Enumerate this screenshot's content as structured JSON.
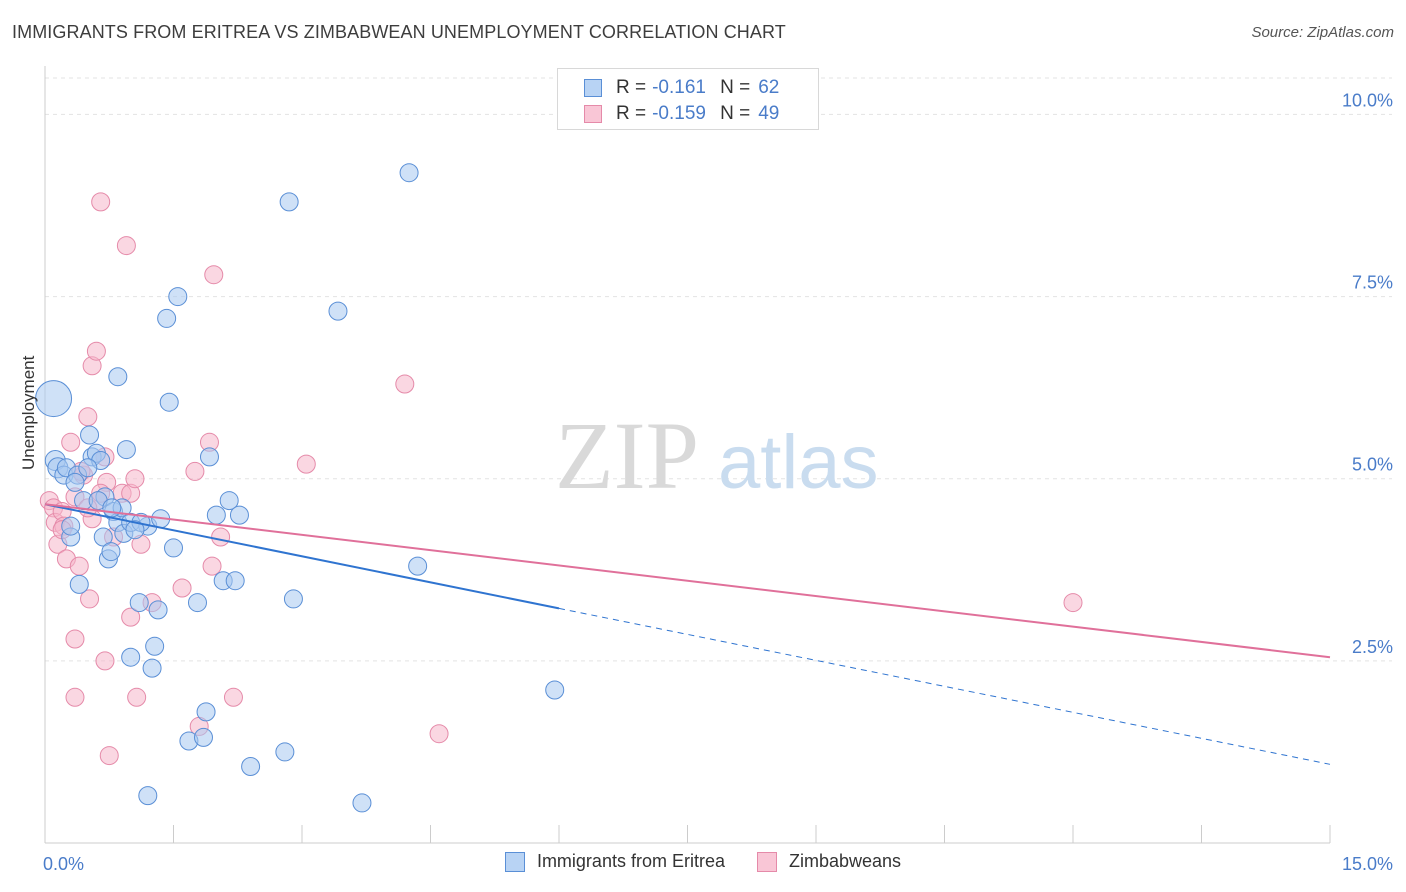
{
  "title": "IMMIGRANTS FROM ERITREA VS ZIMBABWEAN UNEMPLOYMENT CORRELATION CHART",
  "source": "Source: ZipAtlas.com",
  "watermark": {
    "zip": "ZIP",
    "atlas": "atlas"
  },
  "legend": {
    "r_label": "R =",
    "n_label": "N =",
    "series": [
      {
        "r": "-0.161",
        "n": "62"
      },
      {
        "r": "-0.159",
        "n": "49"
      }
    ]
  },
  "colors": {
    "blue_fill": "#a8c8f0",
    "blue_stroke": "#5a8fd6",
    "blue_line": "#2f74d0",
    "pink_fill": "#f6b6cb",
    "pink_stroke": "#e58aa9",
    "pink_line": "#e0709a",
    "accent_text": "#4a7cc9"
  },
  "chart_data": {
    "type": "scatter",
    "title": "IMMIGRANTS FROM ERITREA VS ZIMBABWEAN UNEMPLOYMENT CORRELATION CHART",
    "xlabel": "",
    "ylabel": "Unemployment",
    "xlim": [
      0,
      15
    ],
    "ylim": [
      0,
      10.5
    ],
    "x_tick_labels": [
      "0.0%",
      "15.0%"
    ],
    "y_ticks": [
      2.5,
      5.0,
      7.5,
      10.0
    ],
    "y_tick_labels": [
      "2.5%",
      "5.0%",
      "7.5%",
      "10.0%"
    ],
    "grid": true,
    "series": [
      {
        "name": "Immigrants from Eritrea",
        "r": -0.161,
        "n": 62,
        "trend": {
          "x0": 0,
          "y0": 4.65,
          "x1": 6.0,
          "y1": 3.22,
          "dashed_to_x": 15,
          "dashed_to_y": 1.08
        },
        "points": [
          [
            0.1,
            6.1,
            18
          ],
          [
            0.12,
            5.25,
            10
          ],
          [
            0.15,
            5.15,
            10
          ],
          [
            0.22,
            5.05,
            9
          ],
          [
            0.25,
            5.15,
            9
          ],
          [
            0.3,
            4.2,
            9
          ],
          [
            0.3,
            4.35,
            9
          ],
          [
            0.38,
            5.05,
            9
          ],
          [
            0.4,
            3.55,
            9
          ],
          [
            0.45,
            4.7,
            9
          ],
          [
            0.52,
            5.6,
            9
          ],
          [
            0.55,
            5.3,
            9
          ],
          [
            0.6,
            5.35,
            9
          ],
          [
            0.65,
            5.25,
            9
          ],
          [
            0.68,
            4.2,
            9
          ],
          [
            0.7,
            4.75,
            9
          ],
          [
            0.74,
            3.9,
            9
          ],
          [
            0.77,
            4.0,
            9
          ],
          [
            0.8,
            4.55,
            9
          ],
          [
            0.85,
            4.4,
            9
          ],
          [
            0.9,
            4.6,
            9
          ],
          [
            0.92,
            4.25,
            9
          ],
          [
            0.95,
            5.4,
            9
          ],
          [
            1.0,
            4.4,
            9
          ],
          [
            0.85,
            6.4,
            9
          ],
          [
            1.1,
            3.3,
            9
          ],
          [
            1.2,
            4.35,
            9
          ],
          [
            1.25,
            2.4,
            9
          ],
          [
            1.28,
            2.7,
            9
          ],
          [
            1.32,
            3.2,
            9
          ],
          [
            1.42,
            7.2,
            9
          ],
          [
            1.45,
            6.05,
            9
          ],
          [
            1.5,
            4.05,
            9
          ],
          [
            1.55,
            7.5,
            9
          ],
          [
            1.68,
            1.4,
            9
          ],
          [
            1.78,
            3.3,
            9
          ],
          [
            1.85,
            1.45,
            9
          ],
          [
            1.88,
            1.8,
            9
          ],
          [
            1.92,
            5.3,
            9
          ],
          [
            2.0,
            4.5,
            9
          ],
          [
            2.08,
            3.6,
            9
          ],
          [
            2.15,
            4.7,
            9
          ],
          [
            2.22,
            3.6,
            9
          ],
          [
            2.27,
            4.5,
            9
          ],
          [
            2.4,
            1.05,
            9
          ],
          [
            2.8,
            1.25,
            9
          ],
          [
            2.85,
            8.8,
            9
          ],
          [
            2.9,
            3.35,
            9
          ],
          [
            3.42,
            7.3,
            9
          ],
          [
            3.7,
            0.55,
            9
          ],
          [
            4.25,
            9.2,
            9
          ],
          [
            4.35,
            3.8,
            9
          ],
          [
            5.95,
            2.1,
            9
          ],
          [
            1.2,
            0.65,
            9
          ],
          [
            1.0,
            2.55,
            9
          ],
          [
            0.5,
            5.15,
            9
          ],
          [
            0.62,
            4.7,
            9
          ],
          [
            0.78,
            4.6,
            9
          ],
          [
            1.12,
            4.4,
            9
          ],
          [
            0.35,
            4.95,
            9
          ],
          [
            1.05,
            4.3,
            9
          ],
          [
            1.35,
            4.45,
            9
          ]
        ]
      },
      {
        "name": "Zimbabweans",
        "r": -0.159,
        "n": 49,
        "trend": {
          "x0": 0,
          "y0": 4.65,
          "x1": 15,
          "y1": 2.55
        },
        "points": [
          [
            0.05,
            4.7,
            9
          ],
          [
            0.1,
            4.6,
            9
          ],
          [
            0.12,
            4.4,
            9
          ],
          [
            0.15,
            4.1,
            9
          ],
          [
            0.2,
            4.55,
            9
          ],
          [
            0.22,
            4.35,
            9
          ],
          [
            0.25,
            3.9,
            9
          ],
          [
            0.3,
            5.5,
            9
          ],
          [
            0.35,
            4.75,
            9
          ],
          [
            0.35,
            2.8,
            9
          ],
          [
            0.35,
            2.0,
            9
          ],
          [
            0.4,
            3.8,
            9
          ],
          [
            0.45,
            5.05,
            9
          ],
          [
            0.5,
            5.85,
            9
          ],
          [
            0.52,
            3.35,
            9
          ],
          [
            0.55,
            6.55,
            9
          ],
          [
            0.55,
            4.45,
            9
          ],
          [
            0.6,
            6.75,
            9
          ],
          [
            0.62,
            4.7,
            9
          ],
          [
            0.65,
            8.8,
            9
          ],
          [
            0.7,
            5.3,
            9
          ],
          [
            0.7,
            2.5,
            9
          ],
          [
            0.72,
            4.95,
            9
          ],
          [
            0.75,
            1.2,
            9
          ],
          [
            0.8,
            4.2,
            9
          ],
          [
            0.9,
            4.8,
            9
          ],
          [
            0.95,
            8.2,
            9
          ],
          [
            1.0,
            4.8,
            9
          ],
          [
            1.0,
            3.1,
            9
          ],
          [
            1.05,
            5.0,
            9
          ],
          [
            1.07,
            2.0,
            9
          ],
          [
            1.12,
            4.1,
            9
          ],
          [
            1.25,
            3.3,
            9
          ],
          [
            1.6,
            3.5,
            9
          ],
          [
            1.75,
            5.1,
            9
          ],
          [
            1.8,
            1.6,
            9
          ],
          [
            1.92,
            5.5,
            9
          ],
          [
            1.95,
            3.8,
            9
          ],
          [
            1.97,
            7.8,
            9
          ],
          [
            2.05,
            4.2,
            9
          ],
          [
            2.2,
            2.0,
            9
          ],
          [
            3.05,
            5.2,
            9
          ],
          [
            4.2,
            6.3,
            9
          ],
          [
            4.6,
            1.5,
            9
          ],
          [
            12.0,
            3.3,
            9
          ],
          [
            0.65,
            4.8,
            9
          ],
          [
            0.2,
            4.3,
            9
          ],
          [
            0.5,
            4.6,
            9
          ],
          [
            0.42,
            5.1,
            9
          ]
        ]
      }
    ]
  }
}
